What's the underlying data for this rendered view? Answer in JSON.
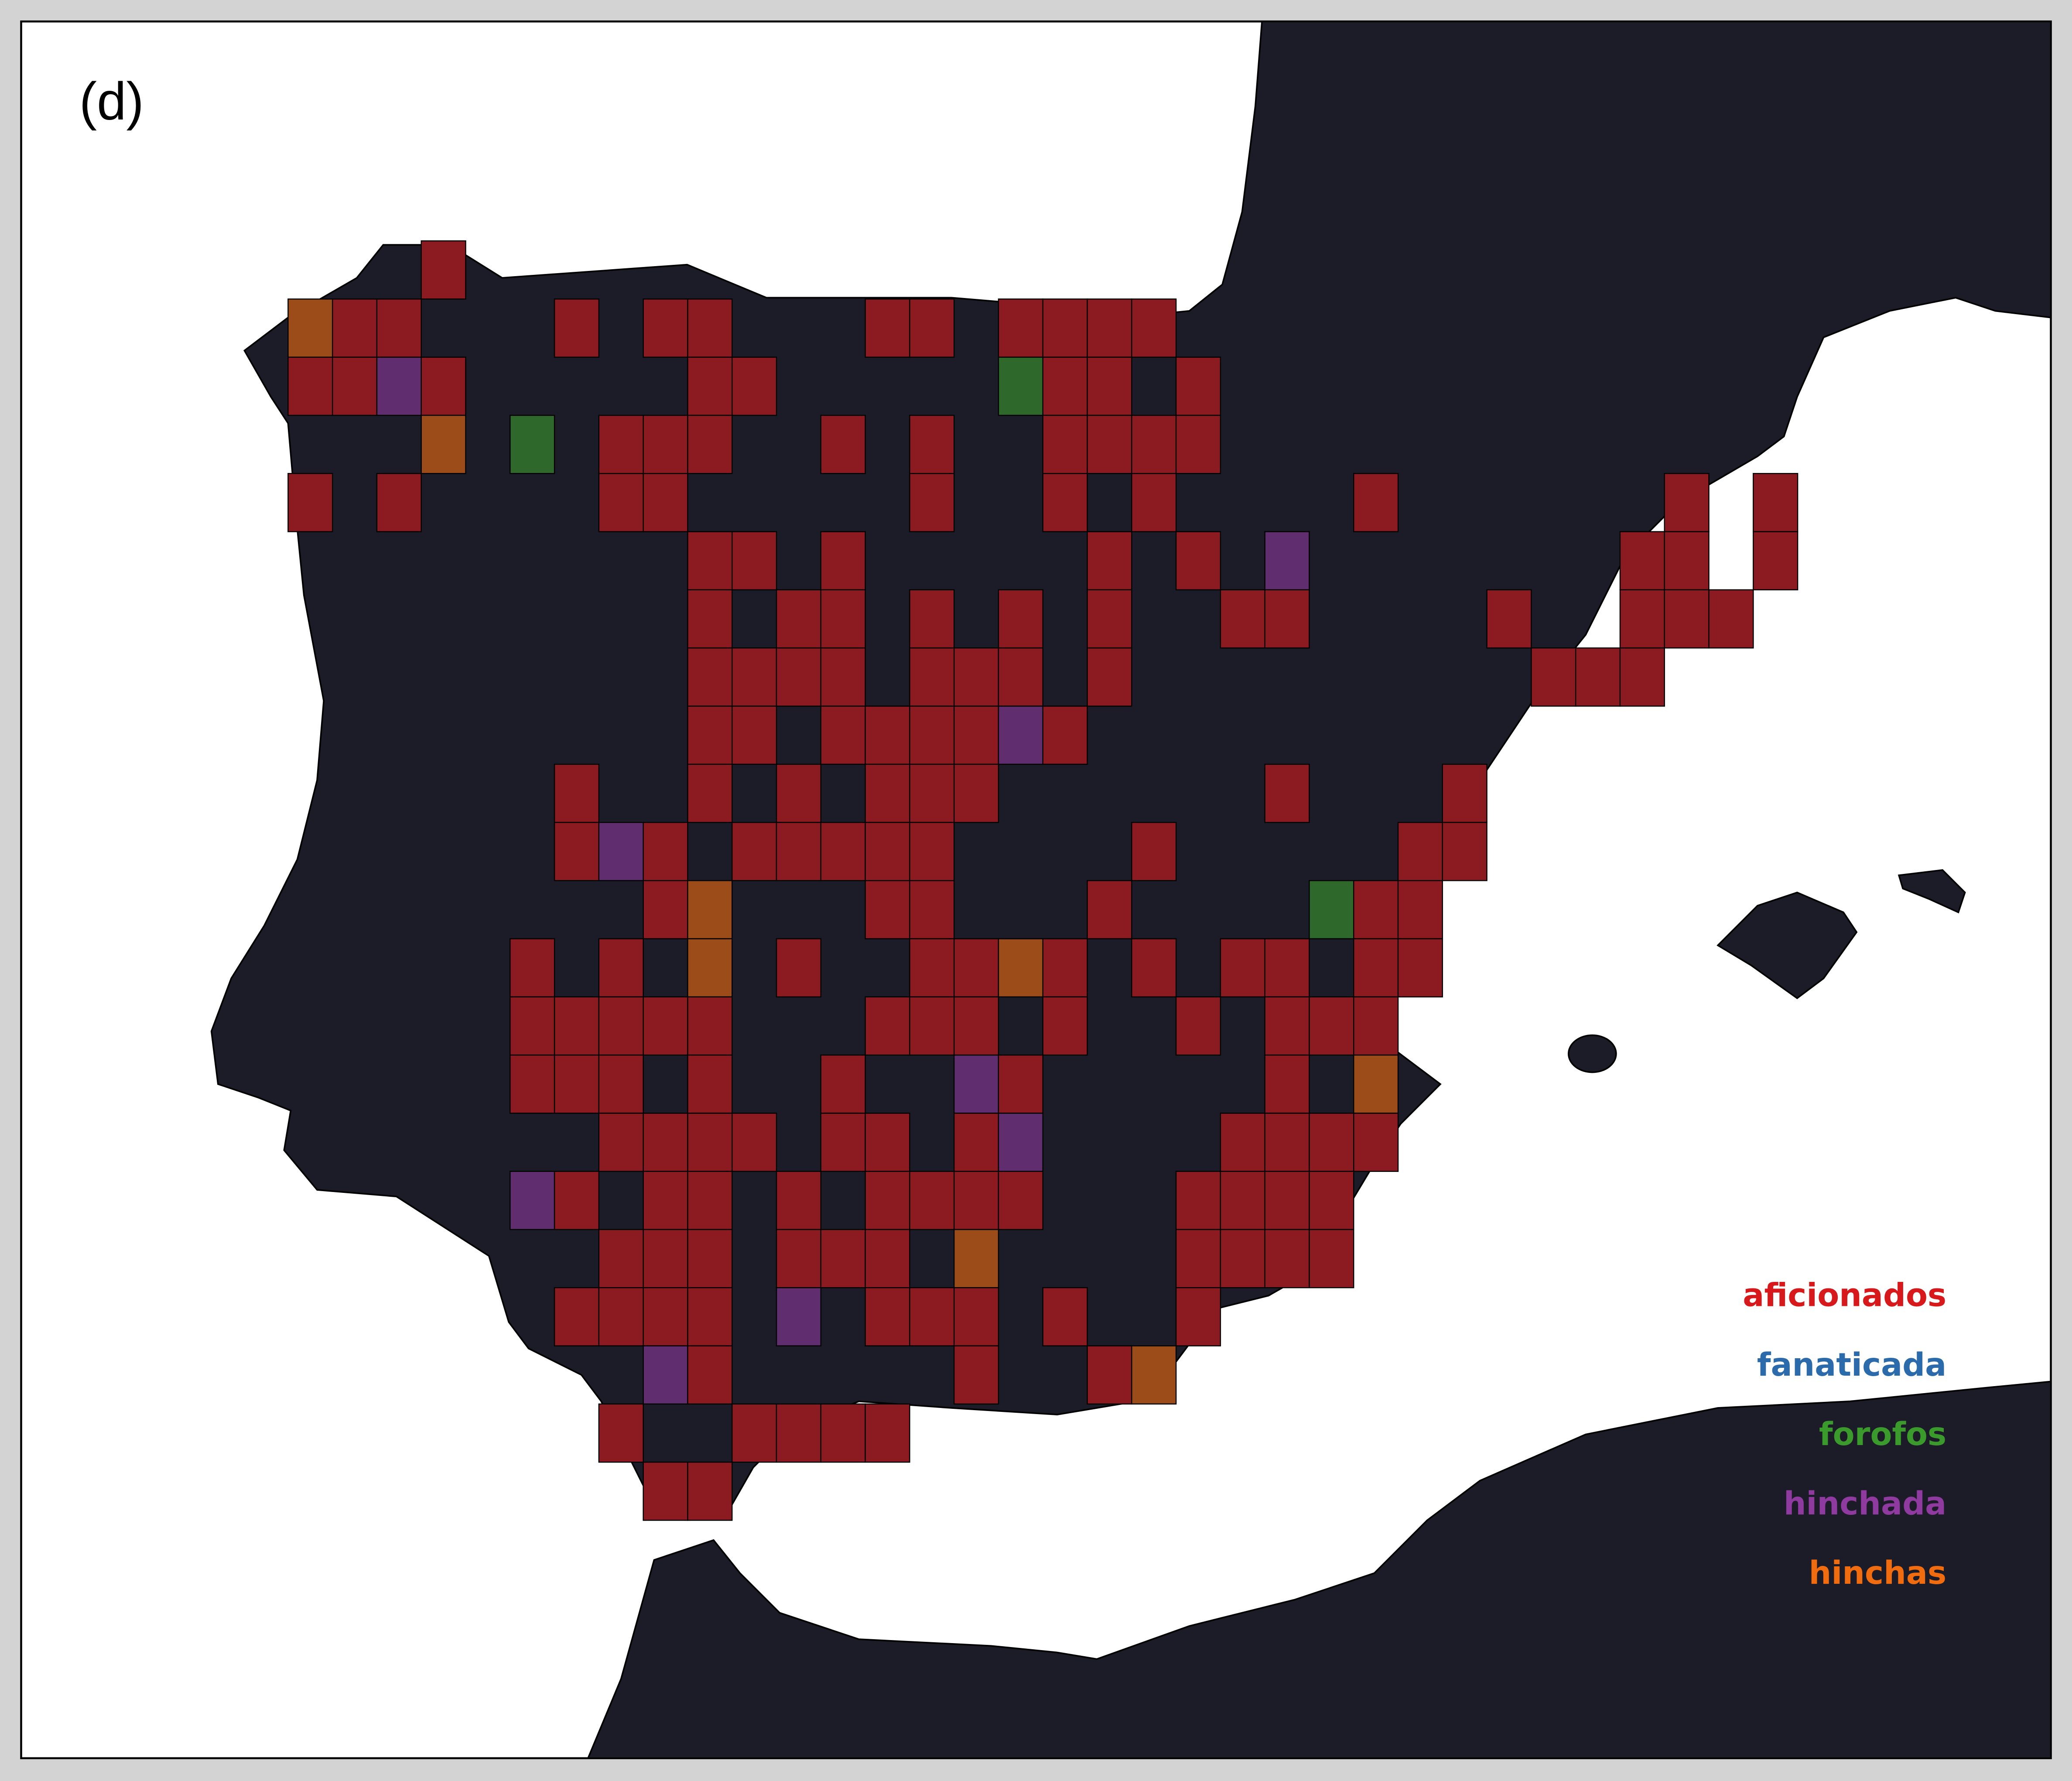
{
  "panel_label": "(d)",
  "legend": [
    {
      "label": "aficionados",
      "color": "#d7191c"
    },
    {
      "label": "fanaticada",
      "color": "#2c6bab"
    },
    {
      "label": "forofos",
      "color": "#3a9a2c"
    },
    {
      "label": "hinchada",
      "color": "#8e3a9e"
    },
    {
      "label": "hinchas",
      "color": "#f06c0e"
    }
  ]
}
